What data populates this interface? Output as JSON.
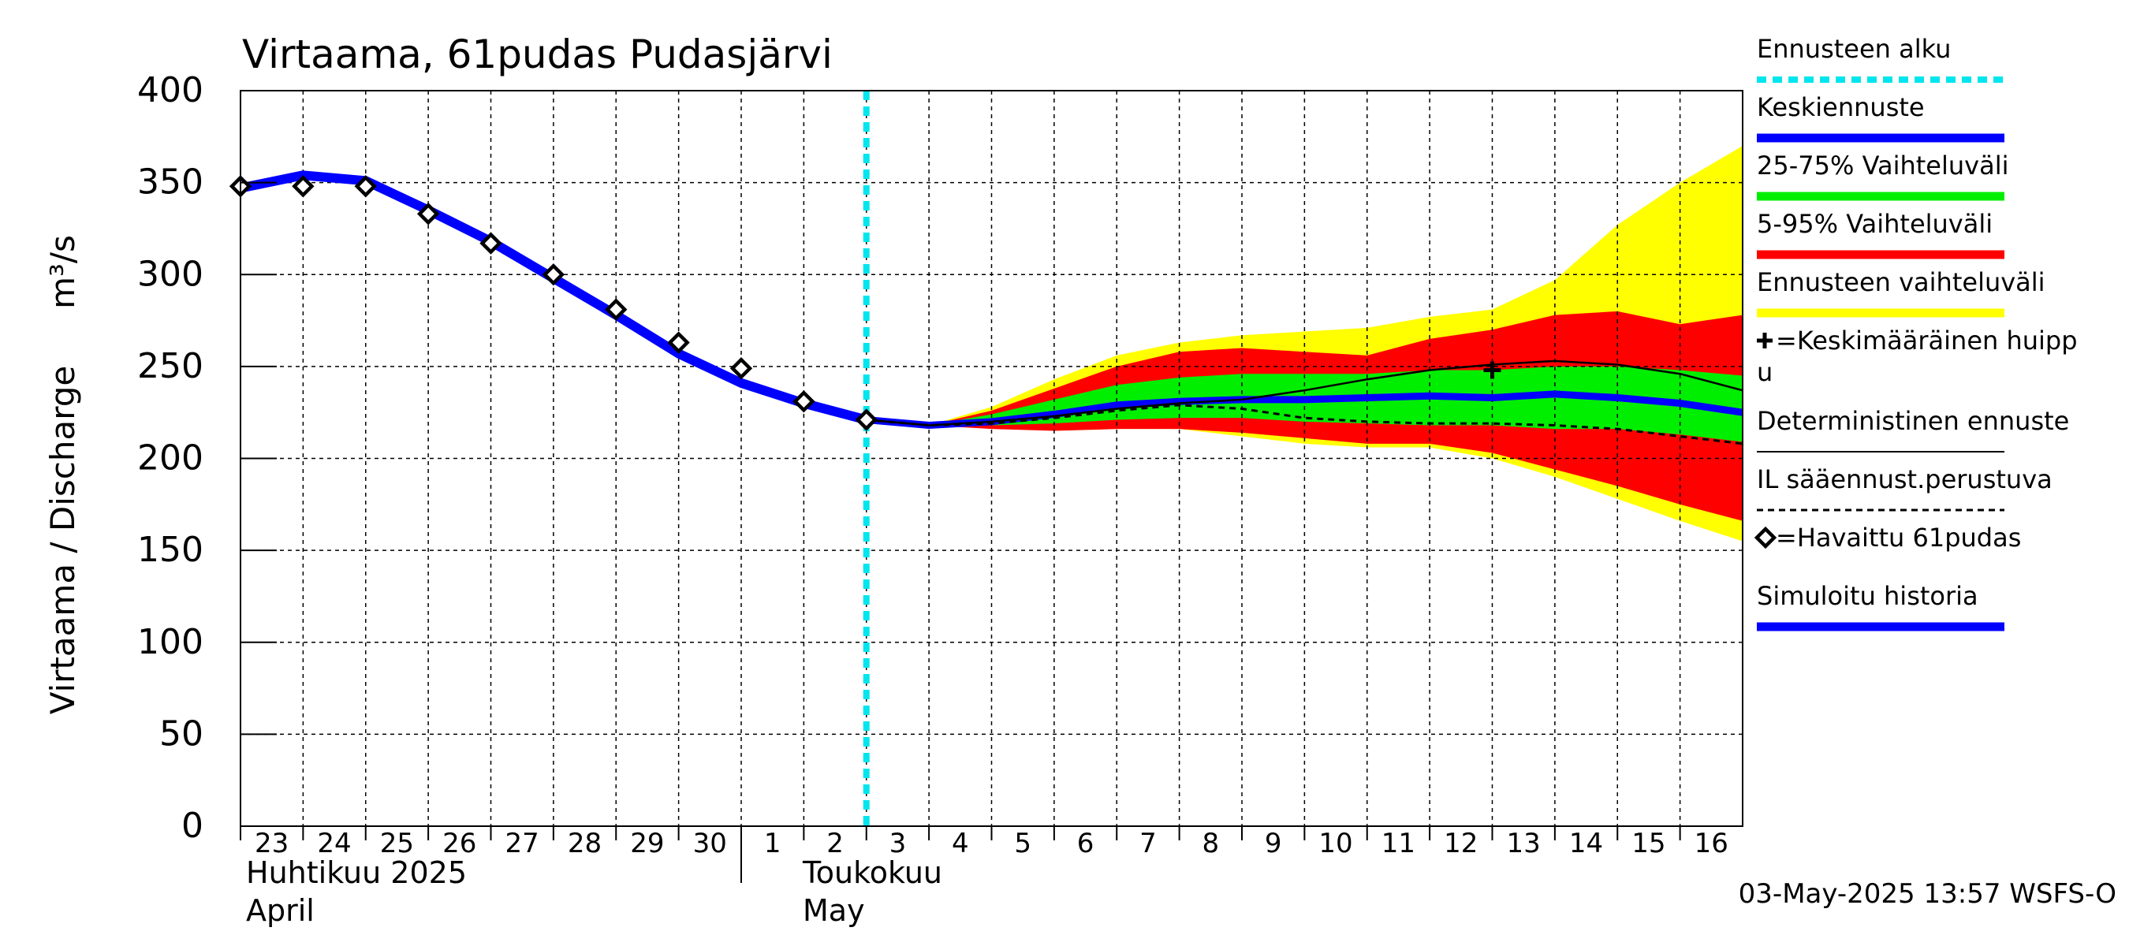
{
  "chart_data": {
    "type": "area",
    "title": "Virtaama, 61pudas Pudasjärvi",
    "ylabel": "Virtaama / Discharge",
    "yunit": "m³/s",
    "ylim": [
      0,
      400
    ],
    "yticks": [
      0,
      50,
      100,
      150,
      200,
      250,
      300,
      350,
      400
    ],
    "xlim_days": [
      23,
      47
    ],
    "x_tick_labels": [
      "23",
      "24",
      "25",
      "26",
      "27",
      "28",
      "29",
      "30",
      "1",
      "2",
      "3",
      "4",
      "5",
      "6",
      "7",
      "8",
      "9",
      "10",
      "11",
      "12",
      "13",
      "14",
      "15",
      "16"
    ],
    "month_labels": [
      {
        "fi": "Huhtikuu  2025",
        "en": "April"
      },
      {
        "fi": "Toukokuu",
        "en": "May"
      }
    ],
    "forecast_start": 33,
    "grid": true,
    "legend_position": "right",
    "legend": [
      {
        "label": "Ennusteen alku",
        "color": "#00e5ee",
        "style": "dotted"
      },
      {
        "label": "Keskiennuste",
        "color": "#0000ff",
        "style": "line"
      },
      {
        "label": "25-75% Vaihteluväli",
        "color": "#00ee00",
        "style": "line"
      },
      {
        "label": "5-95% Vaihteluväli",
        "color": "#ff0000",
        "style": "line"
      },
      {
        "label": "Ennusteen vaihteluväli",
        "color": "#ffff00",
        "style": "line"
      },
      {
        "label": "=Keskimääräinen huipp",
        "label2": "u",
        "color": "#000000",
        "style": "plus"
      },
      {
        "label": "Deterministinen ennuste",
        "color": "#000000",
        "style": "thin"
      },
      {
        "label": "IL sääennust.perustuva",
        "color": "#000000",
        "style": "dashed"
      },
      {
        "label": "=Havaittu 61pudas",
        "color": "#000000",
        "style": "diamond"
      },
      {
        "label": "Simuloitu historia",
        "color": "#0000ff",
        "style": "line"
      }
    ],
    "observed": {
      "name": "Havaittu 61pudas",
      "x": [
        23,
        24,
        25,
        26,
        27,
        28,
        29,
        30,
        31,
        32,
        33
      ],
      "y": [
        348,
        348,
        348,
        333,
        317,
        300,
        281,
        263,
        249,
        231,
        221
      ]
    },
    "simulated_history": {
      "name": "Simuloitu historia",
      "x": [
        23,
        24,
        25,
        26,
        27,
        28,
        29,
        30,
        31,
        32,
        33
      ],
      "y": [
        347,
        354,
        351,
        335,
        318,
        298,
        278,
        257,
        241,
        230,
        221
      ]
    },
    "forecast_x": [
      33,
      34,
      35,
      36,
      37,
      38,
      39,
      40,
      41,
      42,
      43,
      44,
      45,
      46,
      47
    ],
    "median": [
      221,
      218,
      220,
      224,
      229,
      231,
      232,
      232,
      233,
      234,
      233,
      235,
      233,
      230,
      225
    ],
    "p25": [
      221,
      218,
      218,
      219,
      221,
      222,
      222,
      220,
      219,
      218,
      218,
      216,
      216,
      213,
      209
    ],
    "p75": [
      221,
      218,
      224,
      232,
      240,
      244,
      246,
      246,
      246,
      248,
      248,
      250,
      250,
      248,
      245
    ],
    "p05": [
      221,
      218,
      216,
      215,
      216,
      216,
      214,
      211,
      208,
      208,
      203,
      194,
      185,
      175,
      166
    ],
    "p95": [
      221,
      218,
      226,
      238,
      250,
      258,
      260,
      258,
      256,
      265,
      270,
      278,
      280,
      273,
      278
    ],
    "min": [
      221,
      218,
      217,
      215,
      216,
      216,
      212,
      208,
      206,
      206,
      200,
      190,
      178,
      166,
      155
    ],
    "max": [
      221,
      218,
      228,
      243,
      256,
      263,
      267,
      269,
      271,
      277,
      281,
      297,
      327,
      350,
      370
    ],
    "deterministic": [
      221,
      218,
      220,
      223,
      227,
      230,
      232,
      237,
      243,
      248,
      251,
      253,
      251,
      246,
      237
    ],
    "il_forecast": [
      221,
      218,
      219,
      222,
      226,
      229,
      227,
      222,
      220,
      219,
      219,
      218,
      216,
      212,
      208
    ],
    "mean_peak": {
      "x": 43,
      "y": 248
    }
  },
  "timestamp": "03-May-2025 13:57 WSFS-O"
}
